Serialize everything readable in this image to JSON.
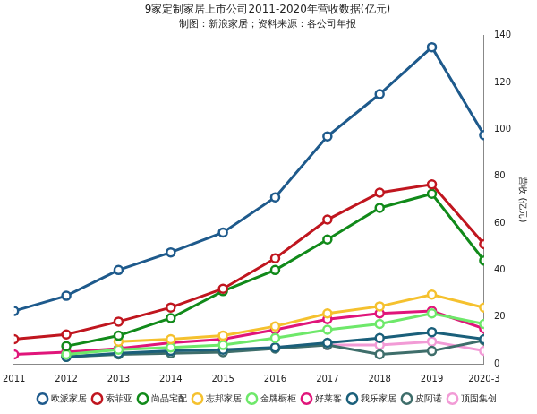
{
  "chart_data": {
    "type": "line",
    "title": "9家定制家居上市公司2011-2020年营收数据(亿元)",
    "subtitle": "制图：新浪家居；资料来源：各公司年报",
    "y_label": "营收 (亿元)",
    "categories": [
      "2011",
      "2012",
      "2013",
      "2014",
      "2015",
      "2016",
      "2017",
      "2018",
      "2019",
      "2020-3"
    ],
    "series": [
      {
        "name": "欧派家居",
        "color": "#1e5a8c",
        "values": [
          22.5,
          29,
          40,
          47.5,
          56,
          71,
          97,
          115,
          135,
          97.5
        ]
      },
      {
        "name": "索菲亚",
        "color": "#c0161f",
        "values": [
          10.5,
          12.5,
          18,
          24,
          32,
          45,
          61.5,
          73,
          76.5,
          51
        ]
      },
      {
        "name": "尚品宅配",
        "color": "#118a1a",
        "values": [
          null,
          7.5,
          12,
          19.5,
          31,
          40,
          53,
          66.5,
          72.5,
          44
        ]
      },
      {
        "name": "志邦家居",
        "color": "#f5c12e",
        "values": [
          null,
          null,
          9.5,
          10.5,
          12,
          16,
          21.5,
          24.5,
          29.5,
          24
        ]
      },
      {
        "name": "金牌橱柜",
        "color": "#6ee86a",
        "values": [
          null,
          4,
          6,
          7,
          8,
          11,
          14.5,
          17,
          21.5,
          17
        ]
      },
      {
        "name": "好莱客",
        "color": "#e0157a",
        "values": [
          4,
          5,
          6.5,
          9,
          10.5,
          14.5,
          19,
          21.5,
          22.5,
          15
        ]
      },
      {
        "name": "我乐家居",
        "color": "#1a5f7a",
        "values": [
          null,
          3,
          4.5,
          5.5,
          6,
          7,
          9,
          11,
          13.5,
          10.5
        ]
      },
      {
        "name": "皮阿诺",
        "color": "#3f6e6b",
        "values": [
          null,
          3,
          4,
          4.5,
          5,
          6.5,
          8,
          4,
          5.5,
          10
        ]
      },
      {
        "name": "顶固集创",
        "color": "#f29bd6",
        "values": [
          null,
          null,
          null,
          null,
          null,
          7,
          8,
          8,
          9.5,
          5.5
        ]
      }
    ],
    "ylim": [
      0,
      140
    ],
    "yticks": [
      0,
      20,
      40,
      60,
      80,
      100,
      120,
      140
    ],
    "grid": false,
    "legend": "bottom",
    "marker": "circle"
  }
}
